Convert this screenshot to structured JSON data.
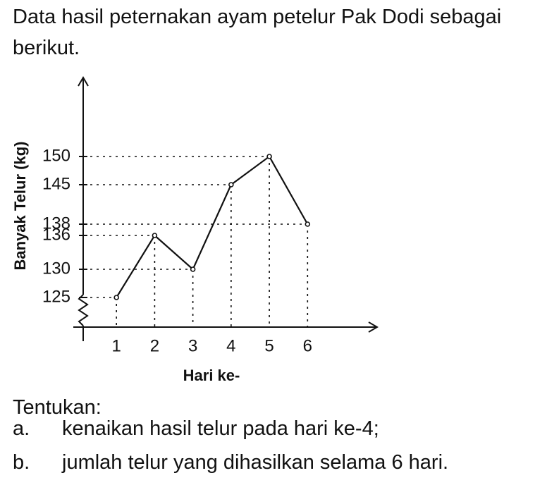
{
  "intro": "Data hasil peternakan ayam petelur Pak Dodi sebagai berikut.",
  "chart_data": {
    "type": "line",
    "x": [
      1,
      2,
      3,
      4,
      5,
      6
    ],
    "values": [
      125,
      136,
      130,
      145,
      150,
      138
    ],
    "x_label": "Hari ke-",
    "y_label": "Banyak Telur (kg)",
    "xlim": [
      0.13,
      7.82
    ],
    "xticks": [
      1,
      2,
      3,
      4,
      5,
      6
    ],
    "ylim": [
      119.75,
      164
    ],
    "yticks": [
      125,
      130,
      136,
      138,
      145,
      150
    ],
    "color": "#111111"
  },
  "prompt": "Tentukan:",
  "questions": [
    {
      "marker": "a.",
      "text": "kenaikan hasil telur pada hari ke-4;"
    },
    {
      "marker": "b.",
      "text": "jumlah telur yang dihasilkan selama 6 hari."
    }
  ]
}
